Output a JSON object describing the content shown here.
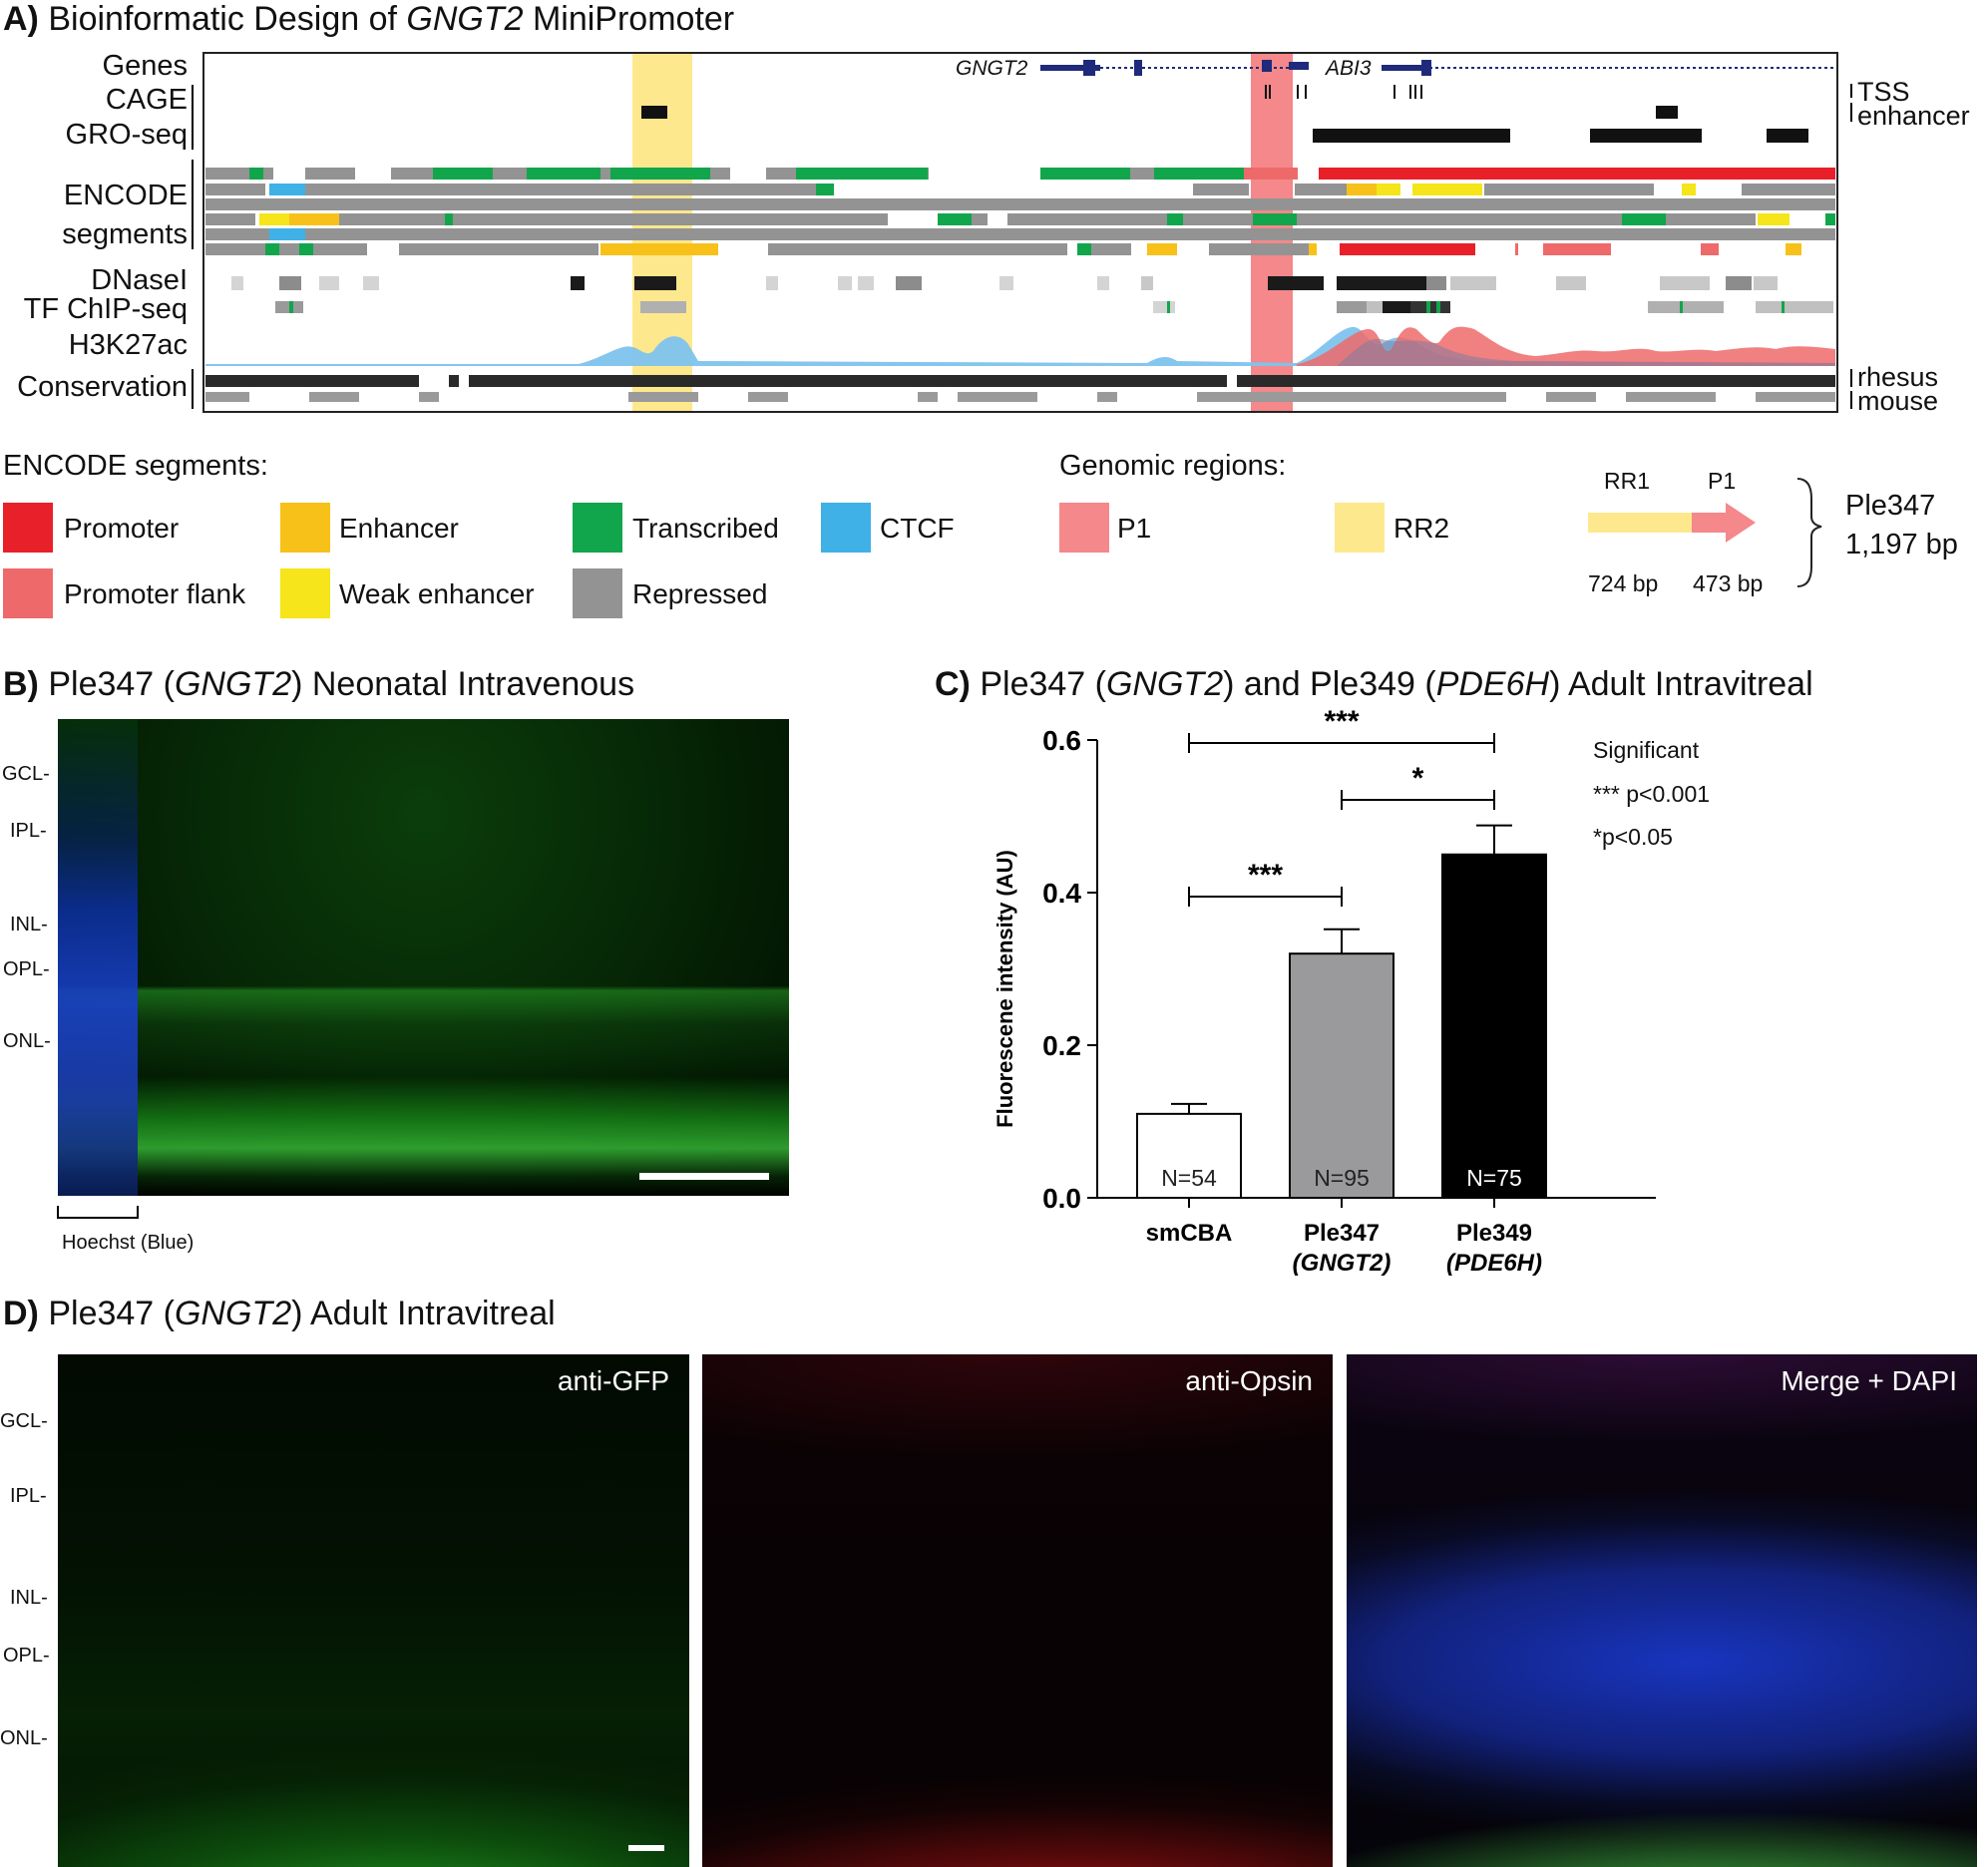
{
  "panelA": {
    "letter": "A)",
    "title_pre": "Bioinformatic Design of ",
    "title_gene": "GNGT2",
    "title_post": " MiniPromoter",
    "track_labels": [
      "Genes",
      "CAGE",
      "GRO-seq",
      "ENCODE",
      "segments",
      "DNaseI",
      "TF ChIP-seq",
      "H3K27ac",
      "Conservation"
    ],
    "right_labels": [
      "TSS",
      "enhancer",
      "rhesus",
      "mouse"
    ],
    "genes": [
      "GNGT2",
      "ABI3"
    ]
  },
  "legend": {
    "segments_header": "ENCODE segments:",
    "segments": [
      {
        "label": "Promoter",
        "color": "#e8202a"
      },
      {
        "label": "Enhancer",
        "color": "#f7c11a"
      },
      {
        "label": "Transcribed",
        "color": "#11a64b"
      },
      {
        "label": "CTCF",
        "color": "#3fb1e6"
      },
      {
        "label": "Promoter flank",
        "color": "#ee6a6a"
      },
      {
        "label": "Weak enhancer",
        "color": "#f5e51a"
      },
      {
        "label": "Repressed",
        "color": "#939393"
      }
    ],
    "regions_header": "Genomic regions:",
    "regions": [
      {
        "label": "P1",
        "color": "#f4888a"
      },
      {
        "label": "RR2",
        "color": "#fde88d"
      }
    ],
    "construct": {
      "rr1": "RR1",
      "p1": "P1",
      "rr1_bp": "724 bp",
      "p1_bp": "473 bp",
      "name": "Ple347",
      "size": "1,197 bp"
    }
  },
  "panelB": {
    "letter": "B)",
    "title_pre": "Ple347 (",
    "title_gene": "GNGT2",
    "title_post": ") Neonatal Intravenous",
    "layers": [
      "GCL-",
      "IPL-",
      "INL-",
      "OPL-",
      "ONL-"
    ],
    "hoechst": "Hoechst (Blue)"
  },
  "panelC": {
    "letter": "C)",
    "title_1": "Ple347 (",
    "title_gene1": "GNGT2",
    "title_2": ") and Ple349 (",
    "title_gene2": "PDE6H",
    "title_3": ") Adult Intravitreal",
    "significance": {
      "header": "Significant",
      "line1": "*** p<0.001",
      "line2": "*p<0.05"
    }
  },
  "chart_data": {
    "type": "bar",
    "categories": [
      "smCBA",
      "Ple347 (GNGT2)",
      "Ple349 (PDE6H)"
    ],
    "values": [
      0.11,
      0.32,
      0.45
    ],
    "errors": [
      0.013,
      0.032,
      0.038
    ],
    "n_labels": [
      "N=54",
      "N=95",
      "N=75"
    ],
    "bar_colors": [
      "#ffffff",
      "#9a9a9c",
      "#000000"
    ],
    "ylabel": "Fluorescene intensity (AU)",
    "ylim": [
      0,
      0.6
    ],
    "yticks": [
      "0.0",
      "0.2",
      "0.4",
      "0.6"
    ],
    "comparisons": [
      {
        "from": "smCBA",
        "to": "Ple349 (PDE6H)",
        "label": "***"
      },
      {
        "from": "Ple347 (GNGT2)",
        "to": "Ple349 (PDE6H)",
        "label": "*"
      },
      {
        "from": "smCBA",
        "to": "Ple347 (GNGT2)",
        "label": "***"
      }
    ]
  },
  "panelD": {
    "letter": "D)",
    "title_pre": "Ple347 (",
    "title_gene": "GNGT2",
    "title_post": ") Adult Intravitreal",
    "layers": [
      "GCL-",
      "IPL-",
      "INL-",
      "OPL-",
      "ONL-"
    ],
    "channels": [
      "anti-GFP",
      "anti-Opsin",
      "Merge + DAPI"
    ]
  }
}
